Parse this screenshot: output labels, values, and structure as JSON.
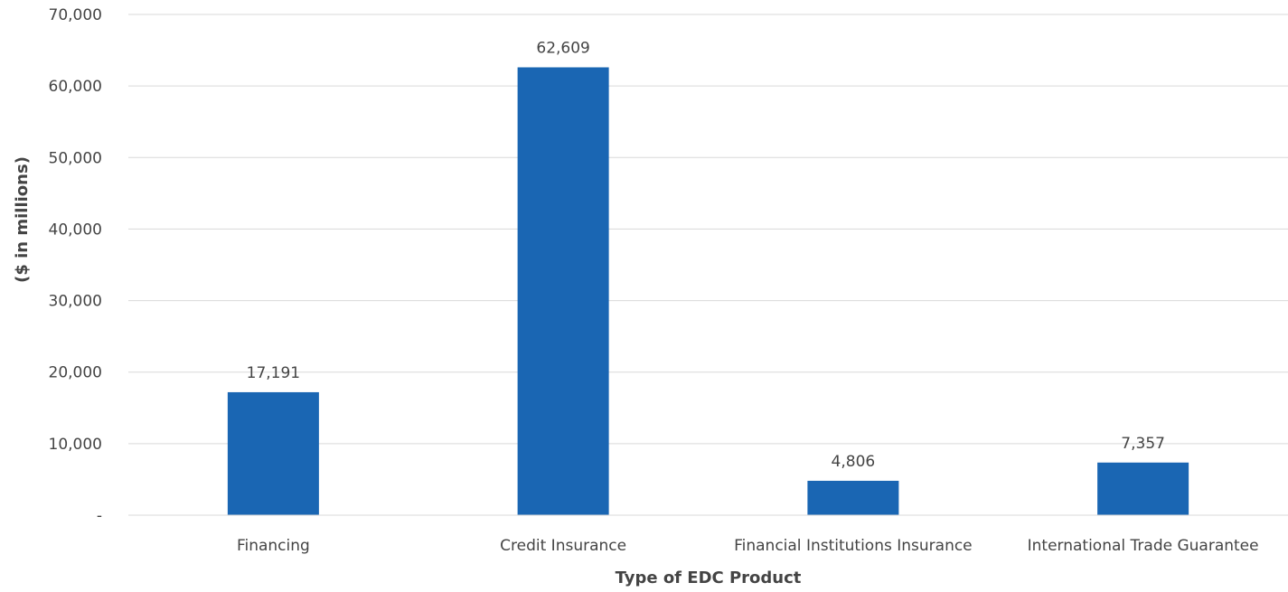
{
  "chart_data": {
    "type": "bar",
    "categories": [
      "Financing",
      "Credit Insurance",
      "Financial Institutions Insurance",
      "International Trade Guarantee"
    ],
    "values": [
      17191,
      62609,
      4806,
      7357
    ],
    "value_labels": [
      "17,191",
      "62,609",
      "4,806",
      "7,357"
    ],
    "xlabel": "Type of EDC Product",
    "ylabel": "($ in millions)",
    "ylim": [
      0,
      70000
    ],
    "yticks": [
      0,
      10000,
      20000,
      30000,
      40000,
      50000,
      60000,
      70000
    ],
    "ytick_labels": [
      "-",
      "10,000",
      "20,000",
      "30,000",
      "40,000",
      "50,000",
      "60,000",
      "70,000"
    ],
    "grid": true,
    "bar_color": "#1a66b3"
  }
}
